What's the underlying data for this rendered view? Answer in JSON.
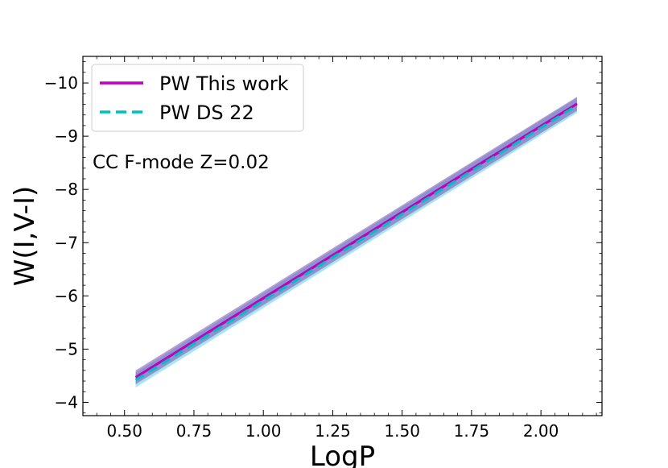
{
  "chart_data": {
    "type": "line",
    "xlabel": "LogP",
    "ylabel": "W(I,V-I)",
    "xlim": [
      0.35,
      2.22
    ],
    "ylim": [
      -3.75,
      -10.5
    ],
    "y_inverted": true,
    "xticks": [
      0.5,
      0.75,
      1.0,
      1.25,
      1.5,
      1.75,
      2.0
    ],
    "xtick_labels": [
      "0.50",
      "0.75",
      "1.00",
      "1.25",
      "1.50",
      "1.75",
      "2.00"
    ],
    "yticks": [
      -4,
      -5,
      -6,
      -7,
      -8,
      -9,
      -10
    ],
    "ytick_labels": [
      "−4",
      "−5",
      "−6",
      "−7",
      "−8",
      "−9",
      "−10"
    ],
    "grid": false,
    "legend_position": "top-left",
    "annotation": "CC F-mode Z=0.02",
    "series": [
      {
        "name": "PW This work",
        "style": "solid",
        "color": "#bf00bf",
        "band_color": "#7b4fb0",
        "x": [
          0.54,
          2.13
        ],
        "y": [
          -4.47,
          -9.61
        ],
        "band_halfwidth": 0.13
      },
      {
        "name": "PW DS 22",
        "style": "dashed",
        "color": "#00bfbf",
        "band_color": "#5fd0e8",
        "x": [
          0.54,
          2.13
        ],
        "y": [
          -4.42,
          -9.58
        ],
        "band_halfwidth": 0.14
      }
    ]
  }
}
